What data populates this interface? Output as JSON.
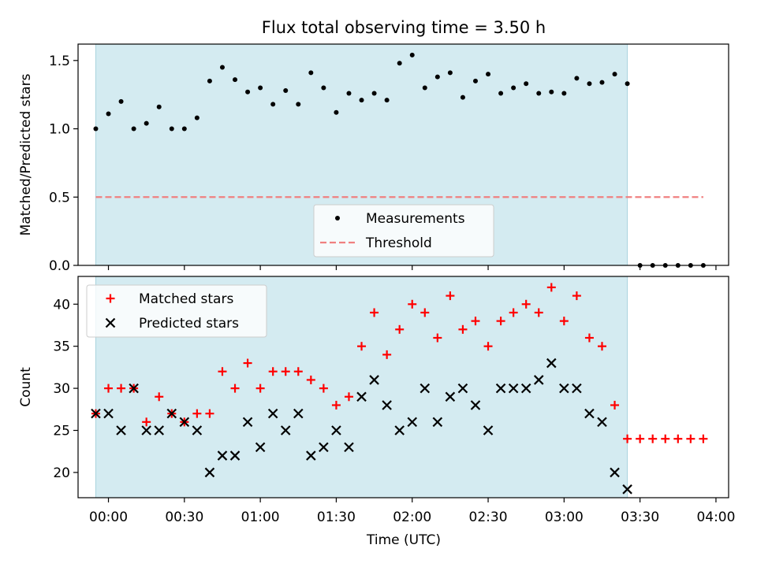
{
  "chart_data": {
    "type": "scatter",
    "title": "Flux total observing time = 3.50 h",
    "xlabel": "Time (UTC)",
    "x_ticks": [
      "00:00",
      "00:30",
      "01:00",
      "01:30",
      "02:00",
      "02:30",
      "03:00",
      "03:30",
      "04:00"
    ],
    "x_range": [
      "-00:12",
      "04:05"
    ],
    "observing_window": {
      "start": "-00:05",
      "end": "03:25",
      "color": "#d4ebf1"
    },
    "panels": [
      {
        "ylabel": "Matched/Predicted stars",
        "ylim": [
          0,
          1.62
        ],
        "y_ticks": [
          "0.0",
          "0.5",
          "1.0",
          "1.5"
        ],
        "legend_position": "lower-center",
        "series": [
          {
            "name": "Measurements",
            "marker": "dot",
            "color": "#000000",
            "x": [
              "-00:05",
              "00:00",
              "00:05",
              "00:10",
              "00:15",
              "00:20",
              "00:25",
              "00:30",
              "00:35",
              "00:40",
              "00:45",
              "00:50",
              "00:55",
              "01:00",
              "01:05",
              "01:10",
              "01:15",
              "01:20",
              "01:25",
              "01:30",
              "01:35",
              "01:40",
              "01:45",
              "01:50",
              "01:55",
              "02:00",
              "02:05",
              "02:10",
              "02:15",
              "02:20",
              "02:25",
              "02:30",
              "02:35",
              "02:40",
              "02:45",
              "02:50",
              "02:55",
              "03:00",
              "03:05",
              "03:10",
              "03:15",
              "03:20",
              "03:25",
              "03:30",
              "03:35",
              "03:40",
              "03:45",
              "03:50",
              "03:55"
            ],
            "y": [
              1.0,
              1.11,
              1.2,
              1.0,
              1.04,
              1.16,
              1.0,
              1.0,
              1.08,
              1.35,
              1.45,
              1.36,
              1.27,
              1.3,
              1.18,
              1.28,
              1.18,
              1.41,
              1.3,
              1.12,
              1.26,
              1.21,
              1.26,
              1.21,
              1.48,
              1.54,
              1.3,
              1.38,
              1.41,
              1.23,
              1.35,
              1.4,
              1.26,
              1.3,
              1.33,
              1.26,
              1.27,
              1.26,
              1.37,
              1.33,
              1.34,
              1.4,
              1.33,
              0.0,
              0.0,
              0.0,
              0.0,
              0.0,
              0.0
            ]
          },
          {
            "name": "Threshold",
            "marker": "dashed-line",
            "color": "#f08080",
            "x": [
              "-00:05",
              "03:55"
            ],
            "y": [
              0.5,
              0.5
            ]
          }
        ]
      },
      {
        "ylabel": "Count",
        "ylim": [
          17,
          43.3
        ],
        "y_ticks": [
          "20",
          "25",
          "30",
          "35",
          "40"
        ],
        "legend_position": "top-left",
        "series": [
          {
            "name": "Matched stars",
            "marker": "plus",
            "color": "#ff0000",
            "x": [
              "-00:05",
              "00:00",
              "00:05",
              "00:10",
              "00:15",
              "00:20",
              "00:25",
              "00:30",
              "00:35",
              "00:40",
              "00:45",
              "00:50",
              "00:55",
              "01:00",
              "01:05",
              "01:10",
              "01:15",
              "01:20",
              "01:25",
              "01:30",
              "01:35",
              "01:40",
              "01:45",
              "01:50",
              "01:55",
              "02:00",
              "02:05",
              "02:10",
              "02:15",
              "02:20",
              "02:25",
              "02:30",
              "02:35",
              "02:40",
              "02:45",
              "02:50",
              "02:55",
              "03:00",
              "03:05",
              "03:10",
              "03:15",
              "03:20",
              "03:25",
              "03:30",
              "03:35",
              "03:40",
              "03:45",
              "03:50",
              "03:55"
            ],
            "y": [
              27,
              30,
              30,
              30,
              26,
              29,
              27,
              26,
              27,
              27,
              32,
              30,
              33,
              30,
              32,
              32,
              32,
              31,
              30,
              28,
              29,
              35,
              39,
              34,
              37,
              40,
              39,
              36,
              41,
              37,
              38,
              35,
              38,
              39,
              40,
              39,
              42,
              38,
              41,
              36,
              35,
              28,
              24,
              24,
              24,
              24,
              24,
              24,
              24
            ]
          },
          {
            "name": "Predicted stars",
            "marker": "x",
            "color": "#000000",
            "x": [
              "-00:05",
              "00:00",
              "00:05",
              "00:10",
              "00:15",
              "00:20",
              "00:25",
              "00:30",
              "00:35",
              "00:40",
              "00:45",
              "00:50",
              "00:55",
              "01:00",
              "01:05",
              "01:10",
              "01:15",
              "01:20",
              "01:25",
              "01:30",
              "01:35",
              "01:40",
              "01:45",
              "01:50",
              "01:55",
              "02:00",
              "02:05",
              "02:10",
              "02:15",
              "02:20",
              "02:25",
              "02:30",
              "02:35",
              "02:40",
              "02:45",
              "02:50",
              "02:55",
              "03:00",
              "03:05",
              "03:10",
              "03:15",
              "03:20",
              "03:25"
            ],
            "y": [
              27,
              27,
              25,
              30,
              25,
              25,
              27,
              26,
              25,
              20,
              22,
              22,
              26,
              23,
              27,
              25,
              27,
              22,
              23,
              25,
              23,
              29,
              31,
              28,
              25,
              26,
              30,
              26,
              29,
              30,
              28,
              25,
              30,
              30,
              30,
              31,
              33,
              30,
              30,
              27,
              26,
              20,
              18
            ]
          }
        ]
      }
    ]
  }
}
